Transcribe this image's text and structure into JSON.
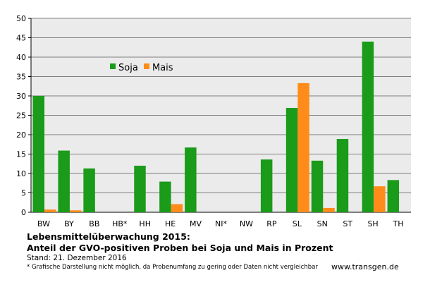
{
  "chart_data": {
    "type": "bar",
    "categories": [
      "BW",
      "BY",
      "BB",
      "HB*",
      "HH",
      "HE",
      "MV",
      "NI*",
      "NW",
      "RP",
      "SL",
      "SN",
      "ST",
      "SH",
      "TH"
    ],
    "series": [
      {
        "name": "Soja",
        "color": "#1a9b1a",
        "values": [
          30,
          15.9,
          11.3,
          0,
          12,
          7.9,
          16.7,
          0,
          0,
          13.6,
          26.9,
          13.3,
          18.9,
          44,
          8.3
        ]
      },
      {
        "name": "Mais",
        "color": "#ff8c1a",
        "values": [
          0.7,
          0.5,
          0,
          0,
          0,
          2.1,
          0,
          0,
          0,
          0,
          33.3,
          1.1,
          0,
          6.7,
          0
        ]
      }
    ],
    "ylim": [
      0,
      50
    ],
    "yticks": [
      0,
      5,
      10,
      15,
      20,
      25,
      30,
      35,
      40,
      45,
      50
    ],
    "grid": true,
    "legend_position": "top-left"
  },
  "caption": {
    "title": "Lebensmittelüberwachung 2015:",
    "subtitle": "Anteil der GVO-positiven Proben bei Soja und Mais in Prozent",
    "date": "Stand: 21. Dezember 2016",
    "footnote": "* Grafische Darstellung nicht möglich, da Probenumfang zu gering oder Daten nicht vergleichbar",
    "source": "www.transgen.de"
  }
}
